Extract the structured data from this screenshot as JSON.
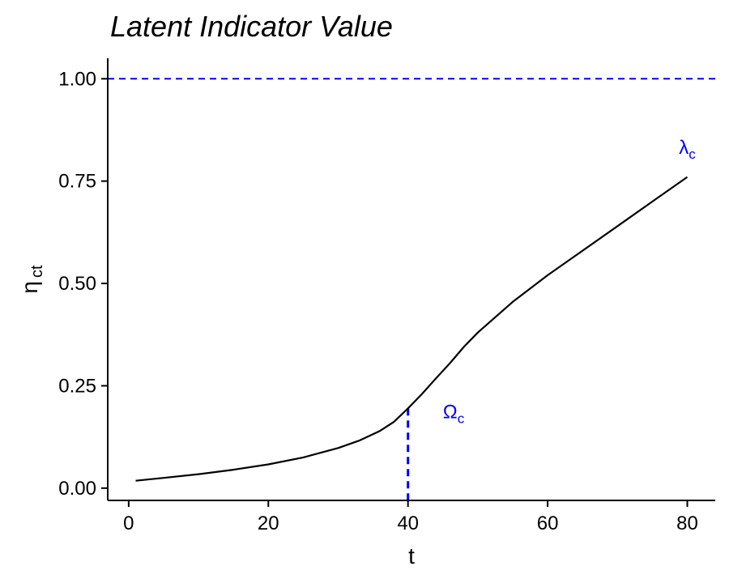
{
  "chart_data": {
    "type": "line",
    "title": "Latent Indicator Value",
    "xlabel": "t",
    "ylabel_main": "η",
    "ylabel_sub": "ct",
    "xlim": [
      -3,
      84
    ],
    "ylim": [
      -0.03,
      1.05
    ],
    "xticks": [
      0,
      20,
      40,
      60,
      80
    ],
    "yticks": [
      0.0,
      0.25,
      0.5,
      0.75,
      1.0
    ],
    "ytick_labels": [
      "0.00",
      "0.25",
      "0.50",
      "0.75",
      "1.00"
    ],
    "grid": false,
    "series": [
      {
        "color": "#000000",
        "x": [
          1,
          5,
          10,
          15,
          20,
          25,
          30,
          33,
          36,
          38,
          40,
          42,
          44,
          46,
          48,
          50,
          55,
          60,
          65,
          70,
          75,
          80
        ],
        "y": [
          0.018,
          0.025,
          0.034,
          0.045,
          0.058,
          0.075,
          0.098,
          0.116,
          0.14,
          0.162,
          0.195,
          0.23,
          0.268,
          0.305,
          0.345,
          0.38,
          0.455,
          0.52,
          0.58,
          0.64,
          0.7,
          0.76
        ]
      }
    ],
    "reference_lines": {
      "horizontal": {
        "y": 1.0,
        "color": "#0000ff",
        "style": "dashed"
      },
      "vertical": {
        "x": 40,
        "y_top": 0.195,
        "color": "#0000ff",
        "style": "dashed"
      }
    },
    "annotations": [
      {
        "id": "omega",
        "main": "Ω",
        "sub": "c",
        "x": 45,
        "y": 0.195,
        "color": "#0000ff"
      },
      {
        "id": "lambda",
        "main": "λ",
        "sub": "c",
        "x": 80,
        "y": 0.84,
        "color": "#0000ff"
      }
    ]
  }
}
